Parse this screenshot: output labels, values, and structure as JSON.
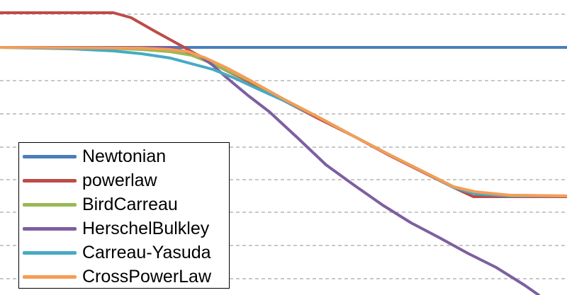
{
  "chart_data": {
    "type": "line",
    "title": "",
    "xlabel": "",
    "ylabel": "",
    "grid": "horizontal dashed",
    "legend_position": "bottom-left",
    "series": [
      {
        "name": "Newtonian",
        "color": "#4a7ebb",
        "points": [
          [
            0,
            67
          ],
          [
            800,
            67
          ]
        ]
      },
      {
        "name": "powerlaw",
        "color": "#be4b48",
        "points": [
          [
            0,
            18
          ],
          [
            160,
            18
          ],
          [
            185,
            25
          ],
          [
            220,
            45
          ],
          [
            260,
            67
          ],
          [
            300,
            90
          ],
          [
            350,
            115
          ],
          [
            400,
            142
          ],
          [
            450,
            168
          ],
          [
            500,
            193
          ],
          [
            550,
            220
          ],
          [
            600,
            245
          ],
          [
            640,
            265
          ],
          [
            668,
            278
          ],
          [
            700,
            278
          ],
          [
            800,
            278
          ]
        ]
      },
      {
        "name": "BirdCarreau",
        "color": "#98b954",
        "points": [
          [
            0,
            67
          ],
          [
            150,
            68
          ],
          [
            200,
            70
          ],
          [
            240,
            73
          ],
          [
            270,
            78
          ],
          [
            300,
            90
          ],
          [
            350,
            113
          ],
          [
            400,
            140
          ],
          [
            450,
            166
          ],
          [
            500,
            193
          ],
          [
            550,
            219
          ],
          [
            600,
            244
          ],
          [
            640,
            264
          ],
          [
            670,
            272
          ],
          [
            720,
            276
          ],
          [
            800,
            277
          ]
        ]
      },
      {
        "name": "HerschelBulkley",
        "color": "#7d5fa0",
        "points": [
          [
            0,
            67
          ],
          [
            240,
            67
          ],
          [
            280,
            78
          ],
          [
            300,
            92
          ],
          [
            320,
            110
          ],
          [
            350,
            135
          ],
          [
            380,
            158
          ],
          [
            420,
            195
          ],
          [
            460,
            233
          ],
          [
            500,
            262
          ],
          [
            540,
            290
          ],
          [
            580,
            315
          ],
          [
            620,
            336
          ],
          [
            660,
            358
          ],
          [
            700,
            378
          ],
          [
            740,
            403
          ],
          [
            760,
            417
          ]
        ]
      },
      {
        "name": "Carreau-Yasuda",
        "color": "#46aac5",
        "points": [
          [
            0,
            67
          ],
          [
            100,
            69
          ],
          [
            160,
            72
          ],
          [
            200,
            76
          ],
          [
            240,
            82
          ],
          [
            270,
            90
          ],
          [
            300,
            98
          ],
          [
            330,
            110
          ],
          [
            360,
            124
          ],
          [
            400,
            142
          ],
          [
            450,
            166
          ],
          [
            500,
            193
          ],
          [
            550,
            219
          ],
          [
            600,
            244
          ],
          [
            640,
            265
          ],
          [
            670,
            274
          ],
          [
            720,
            277
          ],
          [
            800,
            277
          ]
        ]
      },
      {
        "name": "CrossPowerLaw",
        "color": "#f59d56",
        "points": [
          [
            0,
            67
          ],
          [
            200,
            68
          ],
          [
            240,
            70
          ],
          [
            265,
            73
          ],
          [
            290,
            82
          ],
          [
            320,
            96
          ],
          [
            350,
            112
          ],
          [
            400,
            140
          ],
          [
            450,
            166
          ],
          [
            500,
            193
          ],
          [
            550,
            219
          ],
          [
            600,
            244
          ],
          [
            640,
            264
          ],
          [
            670,
            271
          ],
          [
            720,
            276
          ],
          [
            800,
            277
          ]
        ]
      }
    ]
  }
}
